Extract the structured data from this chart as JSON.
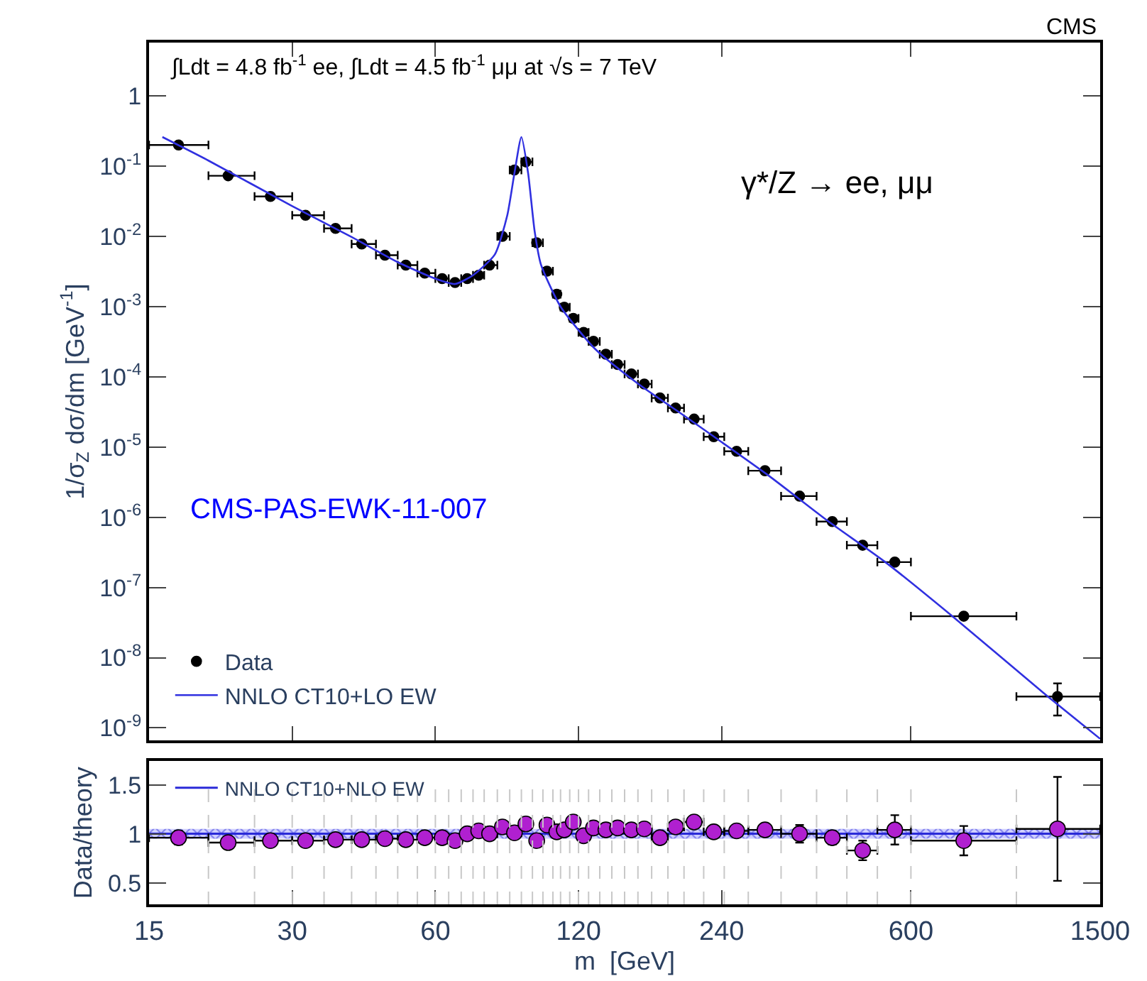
{
  "chart_data": [
    {
      "type": "scatter",
      "log": "xy",
      "xlim": [
        15,
        1500
      ],
      "ylim": [
        6.6e-10,
        5.75
      ],
      "xticks": [
        15,
        30,
        60,
        120,
        240,
        600,
        1500
      ],
      "yticks": [
        {
          "value": 1e-09,
          "label": "10$^{-9}$"
        },
        {
          "value": 1e-08,
          "label": "10$^{-8}$"
        },
        {
          "value": 1e-07,
          "label": "10$^{-7}$"
        },
        {
          "value": 1e-06,
          "label": "10$^{-6}$"
        },
        {
          "value": 1e-05,
          "label": "10$^{-5}$"
        },
        {
          "value": 0.0001,
          "label": "10$^{-4}$"
        },
        {
          "value": 0.001,
          "label": "10$^{-3}$"
        },
        {
          "value": 0.01,
          "label": "10$^{-2}$"
        },
        {
          "value": 0.1,
          "label": "10$^{-1}$"
        },
        1
      ],
      "tick_labels": "y",
      "ylabel": "1/σ$_{Z}$ dσ/dm [GeV$^{-1}$]",
      "legend": "bottom left",
      "annotations": [
        "∫Ldt = 4.8 fb$^{-1}$ ee, ∫Ldt = 4.5 fb$^{-1}$ μμ at √s = 7 TeV",
        "γ*/Z → ee, μμ",
        "CMS-PAS-EWK-11-007",
        "CMS"
      ],
      "series": [
        {
          "name": "Data",
          "marker": "circle",
          "color": "#000000",
          "x": [
            17.3,
            22,
            27,
            32,
            37,
            42,
            47,
            52,
            57,
            62,
            66,
            70,
            74,
            78,
            83,
            88,
            93,
            98,
            103,
            108,
            112,
            117,
            123,
            129,
            137,
            145,
            155,
            165,
            178,
            192,
            210,
            231,
            258,
            296,
            350,
            410,
            475,
            555,
            775,
            1220
          ],
          "values": [
            0.2,
            0.073,
            0.037,
            0.02,
            0.013,
            0.0078,
            0.0054,
            0.0039,
            0.003,
            0.0025,
            0.0022,
            0.0025,
            0.0028,
            0.0039,
            0.01,
            0.088,
            0.115,
            0.0081,
            0.0032,
            0.0015,
            0.00098,
            0.00068,
            0.00043,
            0.00032,
            0.00021,
            0.00015,
            0.00011,
            7.9e-05,
            5e-05,
            3.6e-05,
            2.5e-05,
            1.4e-05,
            8.7e-06,
            4.6e-06,
            2e-06,
            8.7e-07,
            4e-07,
            2.3e-07,
            3.9e-08,
            2.8e-09
          ],
          "xerrors": [
            [
              15,
              20
            ],
            [
              20,
              25
            ],
            [
              25,
              30
            ],
            [
              30,
              35
            ],
            [
              35,
              40
            ],
            [
              40,
              45
            ],
            [
              45,
              50
            ],
            [
              50,
              55
            ],
            [
              55,
              60
            ],
            [
              60,
              64
            ],
            [
              64,
              68
            ],
            [
              68,
              72
            ],
            [
              72,
              76
            ],
            [
              76,
              81
            ],
            [
              81,
              86
            ],
            [
              86,
              91
            ],
            [
              91,
              96
            ],
            [
              96,
              101
            ],
            [
              101,
              106
            ],
            [
              106,
              110
            ],
            [
              110,
              115
            ],
            [
              115,
              120
            ],
            [
              120,
              126
            ],
            [
              126,
              133
            ],
            [
              133,
              141
            ],
            [
              141,
              150
            ],
            [
              150,
              160
            ],
            [
              160,
              171
            ],
            [
              171,
              185
            ],
            [
              185,
              200
            ],
            [
              200,
              220
            ],
            [
              220,
              243
            ],
            [
              243,
              273
            ],
            [
              273,
              320
            ],
            [
              320,
              380
            ],
            [
              380,
              440
            ],
            [
              440,
              510
            ],
            [
              510,
              600
            ],
            [
              600,
              1000
            ],
            [
              1000,
              1500
            ]
          ],
          "errors": [
            null,
            null,
            null,
            null,
            null,
            null,
            null,
            null,
            null,
            null,
            null,
            null,
            null,
            null,
            null,
            null,
            null,
            null,
            null,
            null,
            null,
            null,
            null,
            null,
            null,
            null,
            null,
            null,
            null,
            null,
            null,
            null,
            null,
            null,
            null,
            null,
            null,
            null,
            null,
            [
              1.5e-09,
              4.3e-09
            ]
          ]
        },
        {
          "name": "NNLO CT10+LO EW",
          "type": "line",
          "color": "#3030e0",
          "x": [
            16,
            20,
            30,
            40,
            50,
            60,
            66,
            72,
            80,
            85,
            88,
            91,
            94,
            97,
            100,
            110,
            130,
            160,
            200,
            300,
            400,
            530,
            730,
            1150,
            1500
          ],
          "values": [
            0.26,
            0.12,
            0.027,
            0.0098,
            0.0043,
            0.0025,
            0.0021,
            0.0028,
            0.0055,
            0.02,
            0.08,
            0.26,
            0.08,
            0.012,
            0.004,
            0.001,
            0.00025,
            8e-05,
            2.8e-05,
            4e-06,
            9e-07,
            2.3e-07,
            4e-08,
            3e-09,
            7e-10
          ]
        }
      ]
    },
    {
      "type": "scatter",
      "log": "x",
      "xlim": [
        15,
        1500
      ],
      "ylim": [
        0.28,
        1.74
      ],
      "xticks": [
        15,
        30,
        60,
        120,
        240,
        600,
        1500
      ],
      "yticks": [
        0.5,
        1,
        1.5
      ],
      "xlabel": "m  [GeV]",
      "ylabel": "Data/theory",
      "legend": "top left",
      "ref_lines": [
        {
          "axis": "x",
          "value": 20,
          "color": "#c8c8c8",
          "line_style": "dashed"
        },
        {
          "axis": "x",
          "value": 25,
          "color": "#c8c8c8",
          "line_style": "dashed"
        },
        {
          "axis": "x",
          "value": 30,
          "color": "#c8c8c8",
          "line_style": "dashed"
        },
        {
          "axis": "x",
          "value": 35,
          "color": "#c8c8c8",
          "line_style": "dashed"
        },
        {
          "axis": "x",
          "value": 40,
          "color": "#c8c8c8",
          "line_style": "dashed"
        },
        {
          "axis": "x",
          "value": 45,
          "color": "#c8c8c8",
          "line_style": "dashed"
        },
        {
          "axis": "x",
          "value": 50,
          "color": "#c8c8c8",
          "line_style": "dashed"
        },
        {
          "axis": "x",
          "value": 55,
          "color": "#c8c8c8",
          "line_style": "dashed"
        },
        {
          "axis": "x",
          "value": 60,
          "color": "#c8c8c8",
          "line_style": "dashed"
        },
        {
          "axis": "x",
          "value": 64,
          "color": "#c8c8c8",
          "line_style": "dashed"
        },
        {
          "axis": "x",
          "value": 68,
          "color": "#c8c8c8",
          "line_style": "dashed"
        },
        {
          "axis": "x",
          "value": 72,
          "color": "#c8c8c8",
          "line_style": "dashed"
        },
        {
          "axis": "x",
          "value": 76,
          "color": "#c8c8c8",
          "line_style": "dashed"
        },
        {
          "axis": "x",
          "value": 81,
          "color": "#c8c8c8",
          "line_style": "dashed"
        },
        {
          "axis": "x",
          "value": 86,
          "color": "#c8c8c8",
          "line_style": "dashed"
        },
        {
          "axis": "x",
          "value": 91,
          "color": "#c8c8c8",
          "line_style": "dashed"
        },
        {
          "axis": "x",
          "value": 96,
          "color": "#c8c8c8",
          "line_style": "dashed"
        },
        {
          "axis": "x",
          "value": 101,
          "color": "#c8c8c8",
          "line_style": "dashed"
        },
        {
          "axis": "x",
          "value": 106,
          "color": "#c8c8c8",
          "line_style": "dashed"
        },
        {
          "axis": "x",
          "value": 110,
          "color": "#c8c8c8",
          "line_style": "dashed"
        },
        {
          "axis": "x",
          "value": 115,
          "color": "#c8c8c8",
          "line_style": "dashed"
        },
        {
          "axis": "x",
          "value": 120,
          "color": "#c8c8c8",
          "line_style": "dashed"
        },
        {
          "axis": "x",
          "value": 126,
          "color": "#c8c8c8",
          "line_style": "dashed"
        },
        {
          "axis": "x",
          "value": 133,
          "color": "#c8c8c8",
          "line_style": "dashed"
        },
        {
          "axis": "x",
          "value": 141,
          "color": "#c8c8c8",
          "line_style": "dashed"
        },
        {
          "axis": "x",
          "value": 150,
          "color": "#c8c8c8",
          "line_style": "dashed"
        },
        {
          "axis": "x",
          "value": 160,
          "color": "#c8c8c8",
          "line_style": "dashed"
        },
        {
          "axis": "x",
          "value": 171,
          "color": "#c8c8c8",
          "line_style": "dashed"
        },
        {
          "axis": "x",
          "value": 185,
          "color": "#c8c8c8",
          "line_style": "dashed"
        },
        {
          "axis": "x",
          "value": 200,
          "color": "#c8c8c8",
          "line_style": "dashed"
        },
        {
          "axis": "x",
          "value": 220,
          "color": "#c8c8c8",
          "line_style": "dashed"
        },
        {
          "axis": "x",
          "value": 243,
          "color": "#c8c8c8",
          "line_style": "dashed"
        },
        {
          "axis": "x",
          "value": 273,
          "color": "#c8c8c8",
          "line_style": "dashed"
        },
        {
          "axis": "x",
          "value": 320,
          "color": "#c8c8c8",
          "line_style": "dashed"
        },
        {
          "axis": "x",
          "value": 380,
          "color": "#c8c8c8",
          "line_style": "dashed"
        },
        {
          "axis": "x",
          "value": 440,
          "color": "#c8c8c8",
          "line_style": "dashed"
        },
        {
          "axis": "x",
          "value": 510,
          "color": "#c8c8c8",
          "line_style": "dashed"
        },
        {
          "axis": "x",
          "value": 600,
          "color": "#c8c8c8",
          "line_style": "dashed"
        },
        {
          "axis": "x",
          "value": 1000,
          "color": "#c8c8c8",
          "line_style": "dashed"
        }
      ],
      "series": [
        {
          "name": "NNLO CT10+NLO EW",
          "type": "line",
          "color": "#2a2ad8",
          "x": [
            15,
            1500
          ],
          "values": [
            1,
            1
          ],
          "lower": [
            0.95,
            0.95
          ],
          "upper": [
            1.05,
            1.05
          ]
        },
        {
          "marker": "circle",
          "color": "#b020d0",
          "x": [
            17.3,
            22,
            27,
            32,
            37,
            42,
            47,
            52,
            57,
            62,
            66,
            70,
            74,
            78,
            83,
            88,
            93,
            98,
            103,
            108,
            112,
            117,
            123,
            129,
            137,
            145,
            155,
            165,
            178,
            192,
            210,
            231,
            258,
            296,
            350,
            410,
            475,
            555,
            775,
            1220
          ],
          "values": [
            0.96,
            0.91,
            0.93,
            0.93,
            0.94,
            0.94,
            0.95,
            0.94,
            0.96,
            0.96,
            0.93,
            1.0,
            1.03,
            1.0,
            1.07,
            1.01,
            1.1,
            0.93,
            1.09,
            1.02,
            1.04,
            1.12,
            0.98,
            1.06,
            1.04,
            1.06,
            1.04,
            1.05,
            0.96,
            1.07,
            1.12,
            1.02,
            1.03,
            1.04,
            1.0,
            0.96,
            0.83,
            1.04,
            0.93,
            1.05
          ],
          "xerrors": [
            [
              15,
              20
            ],
            [
              20,
              25
            ],
            [
              25,
              30
            ],
            [
              30,
              35
            ],
            [
              35,
              40
            ],
            [
              40,
              45
            ],
            [
              45,
              50
            ],
            [
              50,
              55
            ],
            [
              55,
              60
            ],
            [
              60,
              64
            ],
            [
              64,
              68
            ],
            [
              68,
              72
            ],
            [
              72,
              76
            ],
            [
              76,
              81
            ],
            [
              81,
              86
            ],
            [
              86,
              91
            ],
            [
              91,
              96
            ],
            [
              96,
              101
            ],
            [
              101,
              106
            ],
            [
              106,
              110
            ],
            [
              110,
              115
            ],
            [
              115,
              120
            ],
            [
              120,
              126
            ],
            [
              126,
              133
            ],
            [
              133,
              141
            ],
            [
              141,
              150
            ],
            [
              150,
              160
            ],
            [
              160,
              171
            ],
            [
              171,
              185
            ],
            [
              185,
              200
            ],
            [
              200,
              220
            ],
            [
              220,
              243
            ],
            [
              243,
              273
            ],
            [
              273,
              320
            ],
            [
              320,
              380
            ],
            [
              380,
              440
            ],
            [
              440,
              510
            ],
            [
              510,
              600
            ],
            [
              600,
              1000
            ],
            [
              1000,
              1500
            ]
          ],
          "errors": [
            0.07,
            null,
            null,
            null,
            null,
            null,
            null,
            null,
            null,
            null,
            null,
            null,
            null,
            null,
            null,
            null,
            null,
            null,
            null,
            null,
            null,
            null,
            null,
            null,
            null,
            null,
            null,
            null,
            null,
            null,
            null,
            null,
            null,
            null,
            0.09,
            0.07,
            0.1,
            0.15,
            0.15,
            0.53
          ]
        }
      ]
    }
  ]
}
